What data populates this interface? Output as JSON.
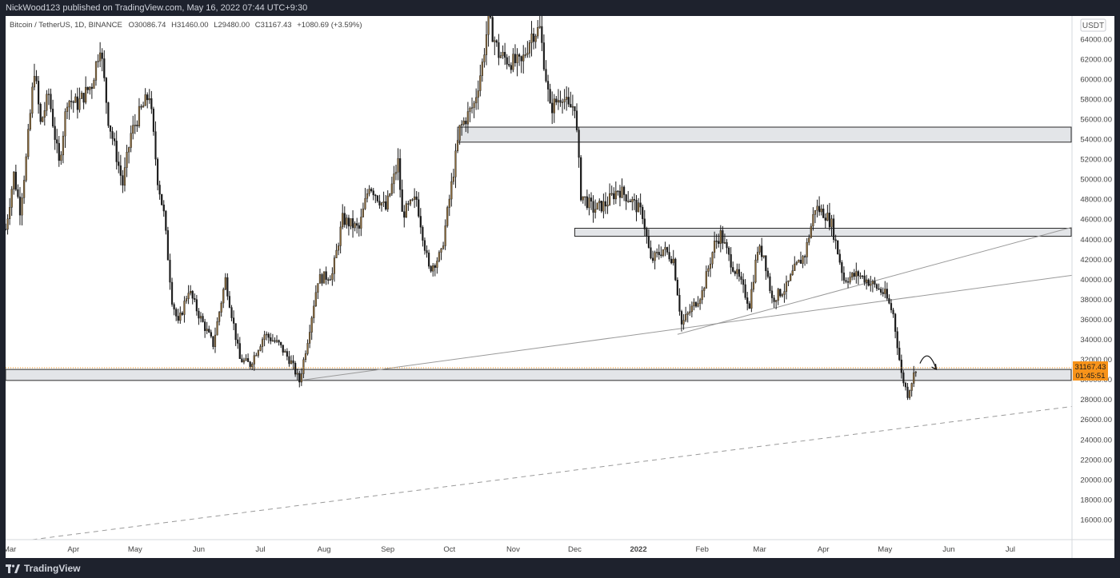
{
  "header": {
    "published_line": "NickWood123 published on TradingView.com, May 16, 2022 07:44 UTC+9:30"
  },
  "footer": {
    "brand": "TradingView",
    "logo_icon": "tradingview-logo-icon"
  },
  "colors": {
    "frame_bg": "#1e222d",
    "plot_bg": "#ffffff",
    "candle": "#1a1a1a",
    "candle_body_up": "#8a6a3a",
    "zone_fill": "#e3e5e8",
    "zone_stroke": "#2a2a2a",
    "trendline": "#9a9a9a",
    "price_tag": "#f7931a"
  },
  "chart_data": {
    "type": "candlestick",
    "symbol_line": {
      "symbol": "Bitcoin / TetherUS, 1D, BINANCE",
      "open": "O30086.74",
      "high": "H31460.00",
      "low": "L29480.00",
      "close": "C31167.43",
      "change": "+1080.69 (+3.59%)"
    },
    "currency_button": "USDT",
    "last_price_label": "31167.43",
    "countdown_label": "01:45:51",
    "x_axis": {
      "type": "date",
      "range": [
        "2021-02-27",
        "2022-07-31"
      ],
      "ticks": [
        {
          "label": "Mar",
          "date": "2021-03-01"
        },
        {
          "label": "Apr",
          "date": "2021-04-01"
        },
        {
          "label": "May",
          "date": "2021-05-01"
        },
        {
          "label": "Jun",
          "date": "2021-06-01"
        },
        {
          "label": "Jul",
          "date": "2021-07-01"
        },
        {
          "label": "Aug",
          "date": "2021-08-01"
        },
        {
          "label": "Sep",
          "date": "2021-09-01"
        },
        {
          "label": "Oct",
          "date": "2021-10-01"
        },
        {
          "label": "Nov",
          "date": "2021-11-01"
        },
        {
          "label": "Dec",
          "date": "2021-12-01"
        },
        {
          "label": "2022",
          "date": "2022-01-01",
          "bold": true
        },
        {
          "label": "Feb",
          "date": "2022-02-01"
        },
        {
          "label": "Mar",
          "date": "2022-03-01"
        },
        {
          "label": "Apr",
          "date": "2022-04-01"
        },
        {
          "label": "May",
          "date": "2022-05-01"
        },
        {
          "label": "Jun",
          "date": "2022-06-01"
        },
        {
          "label": "Jul",
          "date": "2022-07-01"
        }
      ]
    },
    "y_axis": {
      "range": [
        14000,
        66300
      ],
      "ticks": [
        "64000.00",
        "62000.00",
        "60000.00",
        "58000.00",
        "56000.00",
        "54000.00",
        "52000.00",
        "50000.00",
        "48000.00",
        "46000.00",
        "44000.00",
        "42000.00",
        "40000.00",
        "38000.00",
        "36000.00",
        "34000.00",
        "32000.00",
        "30000.00",
        "28000.00",
        "26000.00",
        "24000.00",
        "22000.00",
        "20000.00",
        "18000.00",
        "16000.00"
      ]
    },
    "price_path": [
      [
        "2021-02-27",
        45000
      ],
      [
        "2021-03-03",
        50500
      ],
      [
        "2021-03-06",
        47000
      ],
      [
        "2021-03-09",
        52000
      ],
      [
        "2021-03-13",
        61000
      ],
      [
        "2021-03-16",
        55500
      ],
      [
        "2021-03-20",
        58500
      ],
      [
        "2021-03-25",
        51500
      ],
      [
        "2021-03-29",
        58000
      ],
      [
        "2021-04-03",
        57500
      ],
      [
        "2021-04-10",
        59500
      ],
      [
        "2021-04-14",
        63500
      ],
      [
        "2021-04-18",
        56000
      ],
      [
        "2021-04-25",
        49500
      ],
      [
        "2021-04-29",
        54500
      ],
      [
        "2021-05-03",
        56500
      ],
      [
        "2021-05-08",
        58500
      ],
      [
        "2021-05-12",
        50000
      ],
      [
        "2021-05-15",
        46500
      ],
      [
        "2021-05-19",
        38000
      ],
      [
        "2021-05-22",
        35500
      ],
      [
        "2021-05-27",
        39000
      ],
      [
        "2021-06-01",
        36500
      ],
      [
        "2021-06-08",
        33500
      ],
      [
        "2021-06-14",
        40000
      ],
      [
        "2021-06-21",
        32000
      ],
      [
        "2021-06-26",
        31500
      ],
      [
        "2021-07-03",
        34500
      ],
      [
        "2021-07-10",
        33500
      ],
      [
        "2021-07-16",
        31700
      ],
      [
        "2021-07-20",
        29800
      ],
      [
        "2021-07-24",
        34000
      ],
      [
        "2021-07-29",
        40000
      ],
      [
        "2021-08-05",
        40500
      ],
      [
        "2021-08-10",
        46000
      ],
      [
        "2021-08-18",
        45000
      ],
      [
        "2021-08-23",
        49500
      ],
      [
        "2021-08-31",
        47000
      ],
      [
        "2021-09-06",
        51700
      ],
      [
        "2021-09-08",
        46500
      ],
      [
        "2021-09-15",
        48000
      ],
      [
        "2021-09-21",
        41000
      ],
      [
        "2021-09-27",
        42500
      ],
      [
        "2021-10-01",
        48000
      ],
      [
        "2021-10-06",
        55000
      ],
      [
        "2021-10-13",
        57500
      ],
      [
        "2021-10-17",
        61500
      ],
      [
        "2021-10-20",
        66000
      ],
      [
        "2021-10-25",
        62500
      ],
      [
        "2021-10-30",
        61800
      ],
      [
        "2021-11-05",
        61500
      ],
      [
        "2021-11-10",
        64500
      ],
      [
        "2021-11-14",
        65000
      ],
      [
        "2021-11-19",
        57000
      ],
      [
        "2021-11-25",
        58500
      ],
      [
        "2021-11-28",
        57000
      ],
      [
        "2021-12-01",
        57500
      ],
      [
        "2021-12-04",
        48500
      ],
      [
        "2021-12-10",
        47000
      ],
      [
        "2021-12-16",
        47500
      ],
      [
        "2021-12-22",
        49000
      ],
      [
        "2021-12-28",
        48000
      ],
      [
        "2022-01-03",
        46500
      ],
      [
        "2022-01-07",
        41800
      ],
      [
        "2022-01-13",
        43000
      ],
      [
        "2022-01-18",
        42000
      ],
      [
        "2022-01-22",
        35500
      ],
      [
        "2022-01-26",
        36800
      ],
      [
        "2022-02-01",
        38700
      ],
      [
        "2022-02-07",
        43500
      ],
      [
        "2022-02-10",
        44500
      ],
      [
        "2022-02-14",
        42200
      ],
      [
        "2022-02-19",
        40000
      ],
      [
        "2022-02-24",
        37500
      ],
      [
        "2022-02-28",
        43000
      ],
      [
        "2022-03-03",
        42500
      ],
      [
        "2022-03-07",
        38000
      ],
      [
        "2022-03-14",
        39200
      ],
      [
        "2022-03-18",
        41000
      ],
      [
        "2022-03-23",
        42500
      ],
      [
        "2022-03-28",
        47200
      ],
      [
        "2022-04-02",
        46500
      ],
      [
        "2022-04-05",
        45500
      ],
      [
        "2022-04-11",
        40000
      ],
      [
        "2022-04-18",
        40500
      ],
      [
        "2022-04-25",
        39500
      ],
      [
        "2022-05-01",
        38500
      ],
      [
        "2022-05-05",
        36500
      ],
      [
        "2022-05-09",
        30500
      ],
      [
        "2022-05-12",
        28500
      ],
      [
        "2022-05-16",
        31167
      ]
    ],
    "zones": [
      {
        "name": "resistance-zone-54000",
        "from": "2021-10-05",
        "to": "2022-07-31",
        "low": 53700,
        "high": 55200
      },
      {
        "name": "resistance-zone-45000",
        "from": "2021-12-01",
        "to": "2022-07-31",
        "low": 44300,
        "high": 45100
      },
      {
        "name": "support-zone-30000",
        "from": "2021-02-27",
        "to": "2022-07-31",
        "low": 29900,
        "high": 31000
      }
    ],
    "trendlines": [
      {
        "name": "rising-support-line",
        "style": "solid",
        "points": [
          [
            "2021-07-20",
            29900
          ],
          [
            "2022-07-31",
            40400
          ]
        ]
      },
      {
        "name": "upper-trendline",
        "style": "solid",
        "points": [
          [
            "2022-01-20",
            34500
          ],
          [
            "2022-07-31",
            45200
          ]
        ]
      },
      {
        "name": "long-term-trendline",
        "style": "dashed",
        "points": [
          [
            "2021-03-12",
            14000
          ],
          [
            "2022-07-31",
            27300
          ]
        ]
      }
    ],
    "projection_arrow": {
      "from": [
        "2022-05-18",
        31600
      ],
      "to": [
        "2022-05-26",
        31000
      ]
    }
  }
}
